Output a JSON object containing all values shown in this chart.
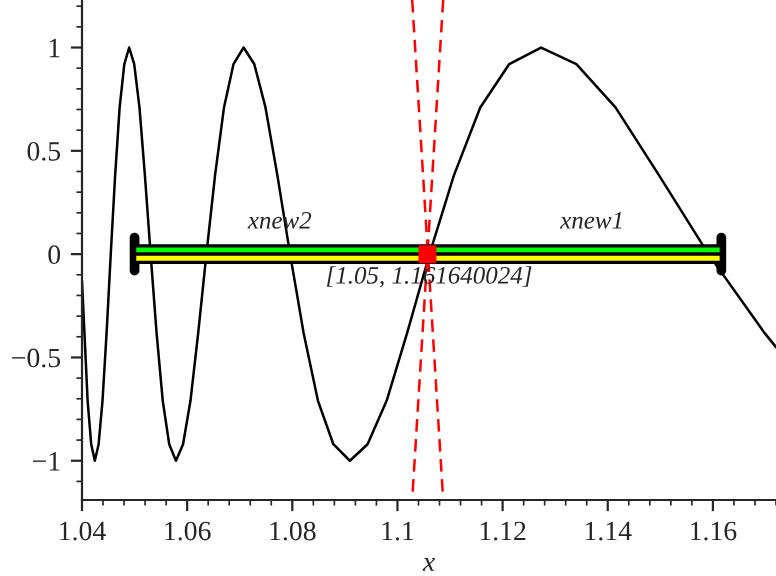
{
  "chart_data": {
    "type": "line",
    "xlabel": "x",
    "xlim": [
      1.04,
      1.172
    ],
    "ylim": [
      -1.19,
      1.23
    ],
    "xticks": [
      1.04,
      1.06,
      1.08,
      1.1,
      1.12,
      1.14,
      1.16
    ],
    "yticks": [
      {
        "value": -1,
        "label": "−1"
      },
      {
        "value": -0.5,
        "label": "−0.5"
      },
      0,
      0.5,
      1
    ],
    "grid": false,
    "legend": false,
    "marker": "none",
    "series": [
      {
        "color": "#000000",
        "line_style": "solid",
        "x": [
          1.04,
          1.04107,
          1.04175,
          1.04244,
          1.04316,
          1.0439,
          1.04468,
          1.04547,
          1.0463,
          1.04716,
          1.04805,
          1.04897,
          1.04993,
          1.05093,
          1.05197,
          1.05305,
          1.05418,
          1.05536,
          1.05659,
          1.05787,
          1.05922,
          1.06063,
          1.06211,
          1.06366,
          1.0653,
          1.06701,
          1.06882,
          1.07074,
          1.07276,
          1.0749,
          1.07717,
          1.07958,
          1.08214,
          1.08488,
          1.08781,
          1.09095,
          1.09431,
          1.09794,
          1.10186,
          1.1061,
          1.11072,
          1.11575,
          1.12126,
          1.12732,
          1.13403,
          1.14147,
          1.14979,
          1.15915,
          1.16977,
          1.172
        ],
        "values": [
          -0.13,
          -0.71,
          -0.92,
          -1,
          -0.92,
          -0.71,
          -0.38,
          0,
          0.38,
          0.71,
          0.92,
          1,
          0.92,
          0.71,
          0.38,
          0,
          -0.38,
          -0.71,
          -0.92,
          -1,
          -0.92,
          -0.71,
          -0.38,
          0,
          0.38,
          0.71,
          0.92,
          1,
          0.92,
          0.71,
          0.38,
          0,
          -0.38,
          -0.71,
          -0.92,
          -1,
          -0.92,
          -0.71,
          -0.38,
          0,
          0.38,
          0.71,
          0.92,
          1,
          0.92,
          0.71,
          0.38,
          0,
          -0.38,
          -0.45
        ]
      },
      {
        "type": "line",
        "color": "#ff0000",
        "line_style": "dashed",
        "x": [
          1.1028,
          1.1087
        ],
        "values": [
          1.23,
          -1.19
        ]
      },
      {
        "type": "line",
        "color": "#ff0000",
        "line_style": "dashed",
        "x": [
          1.1087,
          1.1028
        ],
        "values": [
          1.23,
          -1.19
        ]
      },
      {
        "type": "area",
        "color": "#00ff00",
        "x": [
          1.05,
          1.1616
        ],
        "values": [
          0.04,
          0.04
        ]
      },
      {
        "type": "area",
        "color": "#ffff00",
        "x": [
          1.05,
          1.1616
        ],
        "values": [
          -0.04,
          -0.04
        ]
      },
      {
        "type": "line",
        "color": "#000000",
        "line_style": "solid",
        "x": [
          1.05,
          1.05
        ],
        "values": [
          -0.08,
          0.08
        ]
      },
      {
        "type": "line",
        "color": "#000000",
        "line_style": "solid",
        "x": [
          1.1616,
          1.1616
        ],
        "values": [
          -0.08,
          0.08
        ]
      },
      {
        "type": "scatter",
        "color": "#ff0000",
        "marker": "square",
        "x": [
          1.1057
        ],
        "values": [
          0
        ]
      }
    ],
    "annotations": [
      "xnew2",
      "xnew1",
      "[1.05, 1.161640024]"
    ]
  }
}
